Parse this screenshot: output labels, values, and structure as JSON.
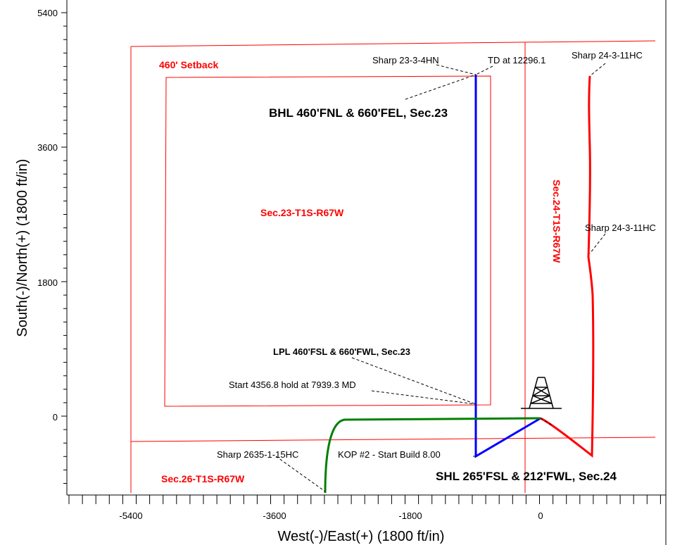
{
  "axes": {
    "xlabel": "West(-)/East(+) (1800 ft/in)",
    "ylabel": "South(-)/North(+) (1800 ft/in)",
    "x_ticks": [
      "-5400",
      "-3600",
      "-1800",
      "0"
    ],
    "y_ticks": [
      "5400",
      "3600",
      "1800",
      "0"
    ]
  },
  "labels": {
    "setback": "460' Setback",
    "sec23": "Sec.23-T1S-R67W",
    "sec24": "Sec.24-T1S-R67W",
    "sec26": "Sec.26-T1S-R67W",
    "sharp_23_3_4hn": "Sharp 23-3-4HN",
    "td": "TD at 12296.1",
    "sharp_24_3_11hc_top": "Sharp 24-3-11HC",
    "sharp_24_3_11hc_mid": "Sharp 24-3-11HC",
    "bhl": "BHL 460'FNL & 660'FEL, Sec.23",
    "lpl": "LPL 460'FSL & 660'FWL, Sec.23",
    "start_hold": "Start 4356.8 hold at 7939.3 MD",
    "sharp_2635": "Sharp 2635-1-15HC",
    "kop": "KOP #2 - Start Build 8.00",
    "shl": "SHL 265'FSL & 212'FWL, Sec.24"
  },
  "colors": {
    "section_lines": "#ff0000",
    "blue_well": "#0000ff",
    "green_well": "#008000",
    "red_well": "#ff0000"
  },
  "icons": [
    "rig-icon"
  ]
}
